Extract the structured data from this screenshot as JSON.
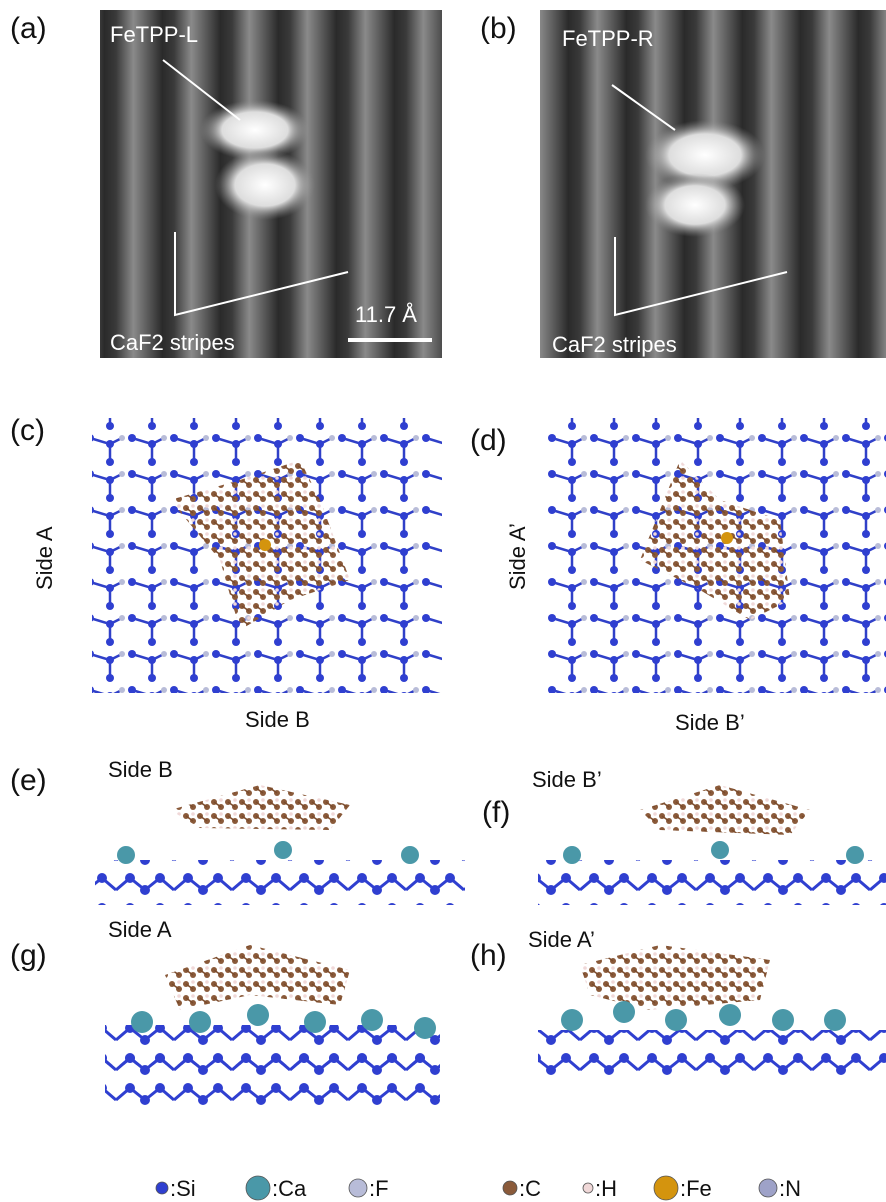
{
  "panels": [
    {
      "label": "(a)",
      "molecule": "FeTPP-L",
      "substrate": "CaF2 stripes",
      "scale": "11.7 Å"
    },
    {
      "label": "(b)",
      "molecule": "FeTPP-R",
      "substrate": "CaF2 stripes"
    },
    {
      "label": "(c)",
      "side_vertical": "Side A",
      "side_horizontal": "Side B"
    },
    {
      "label": "(d)",
      "side_vertical": "Side A’",
      "side_horizontal": "Side B’"
    },
    {
      "label": "(e)",
      "side": "Side B"
    },
    {
      "label": "(f)",
      "side": "Side B’"
    },
    {
      "label": "(g)",
      "side": "Side A"
    },
    {
      "label": "(h)",
      "side": "Side A’"
    }
  ],
  "legend": [
    {
      "label": ":Si",
      "color": "#2f3fd0"
    },
    {
      "label": ":Ca",
      "color": "#4a98a8"
    },
    {
      "label": ":F",
      "color": "#b8bcd8"
    },
    {
      "label": ":C",
      "color": "#8a5a3a"
    },
    {
      "label": ":H",
      "color": "#f0d8d8"
    },
    {
      "label": ":Fe",
      "color": "#d4940e"
    },
    {
      "label": ":N",
      "color": "#9ea2c8"
    }
  ]
}
